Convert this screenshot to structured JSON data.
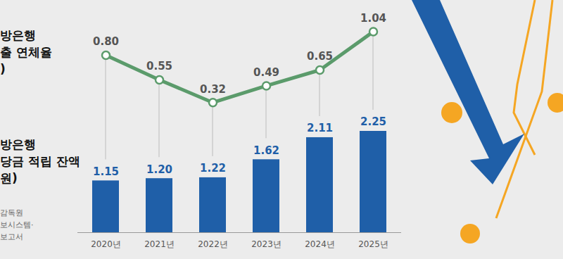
{
  "chart_data": [
    {
      "type": "line",
      "title": "방은행\n출 연체율\n)",
      "categories": [
        "2020년",
        "2021년",
        "2022년",
        "2023년",
        "2024년",
        "2025년"
      ],
      "values": [
        0.8,
        0.55,
        0.32,
        0.49,
        0.65,
        1.04
      ],
      "value_labels": [
        "0.80",
        "0.55",
        "0.32",
        "0.49",
        "0.65",
        "1.04"
      ],
      "color": "#5b9b6b",
      "marker": "circle",
      "data_labels": true,
      "tick_labels": false,
      "ylim": [
        0,
        1.2
      ]
    },
    {
      "type": "bar",
      "title": "방은행\n당금 적립 잔액\n원)",
      "source": "감독원\n보시스템·\n보고서",
      "categories": [
        "2020년",
        "2021년",
        "2022년",
        "2023년",
        "2024년",
        "2025년"
      ],
      "values": [
        1.15,
        1.2,
        1.22,
        1.62,
        2.11,
        2.25
      ],
      "value_labels": [
        "1.15",
        "1.20",
        "1.22",
        "1.62",
        "2.11",
        "2.25"
      ],
      "color": "#1f5fa8",
      "data_labels": true,
      "tick_labels": "x",
      "ylim": [
        0,
        2.5
      ]
    }
  ]
}
